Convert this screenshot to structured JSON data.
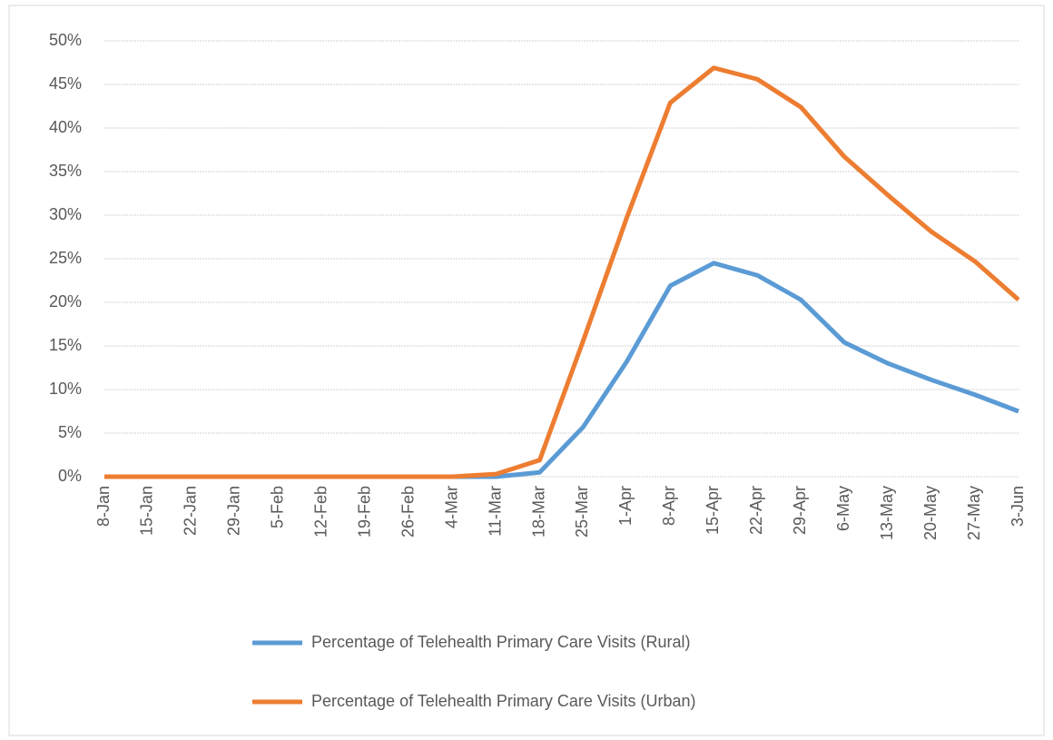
{
  "chart_data": {
    "type": "line",
    "categories": [
      "8-Jan",
      "15-Jan",
      "22-Jan",
      "29-Jan",
      "5-Feb",
      "12-Feb",
      "19-Feb",
      "26-Feb",
      "4-Mar",
      "11-Mar",
      "18-Mar",
      "25-Mar",
      "1-Apr",
      "8-Apr",
      "15-Apr",
      "22-Apr",
      "29-Apr",
      "6-May",
      "13-May",
      "20-May",
      "27-May",
      "3-Jun"
    ],
    "series": [
      {
        "name": "Percentage of Telehealth Primary Care Visits (Rural)",
        "color": "#5b9bd5",
        "values": [
          0,
          0,
          0,
          0,
          0,
          0,
          0,
          0,
          0,
          0,
          0.5,
          5.7,
          13.2,
          21.9,
          24.5,
          23.1,
          20.3,
          15.4,
          13,
          11.1,
          9.4,
          7.5
        ]
      },
      {
        "name": "Percentage of Telehealth Primary Care Visits (Urban)",
        "color": "#ed7d31",
        "values": [
          0,
          0,
          0,
          0,
          0,
          0,
          0,
          0,
          0,
          0.3,
          1.9,
          15.6,
          29.7,
          42.9,
          46.9,
          45.6,
          42.4,
          36.7,
          32.3,
          28.1,
          24.7,
          20.3
        ]
      }
    ],
    "ylim": [
      0,
      50
    ],
    "yticks": [
      {
        "value": 0,
        "label": "0%"
      },
      {
        "value": 5,
        "label": "5%"
      },
      {
        "value": 10,
        "label": "10%"
      },
      {
        "value": 15,
        "label": "15%"
      },
      {
        "value": 20,
        "label": "20%"
      },
      {
        "value": 25,
        "label": "25%"
      },
      {
        "value": 30,
        "label": "30%"
      },
      {
        "value": 35,
        "label": "35%"
      },
      {
        "value": 40,
        "label": "40%"
      },
      {
        "value": 45,
        "label": "45%"
      },
      {
        "value": 50,
        "label": "50%"
      }
    ],
    "grid": true,
    "legend": "bottom"
  }
}
